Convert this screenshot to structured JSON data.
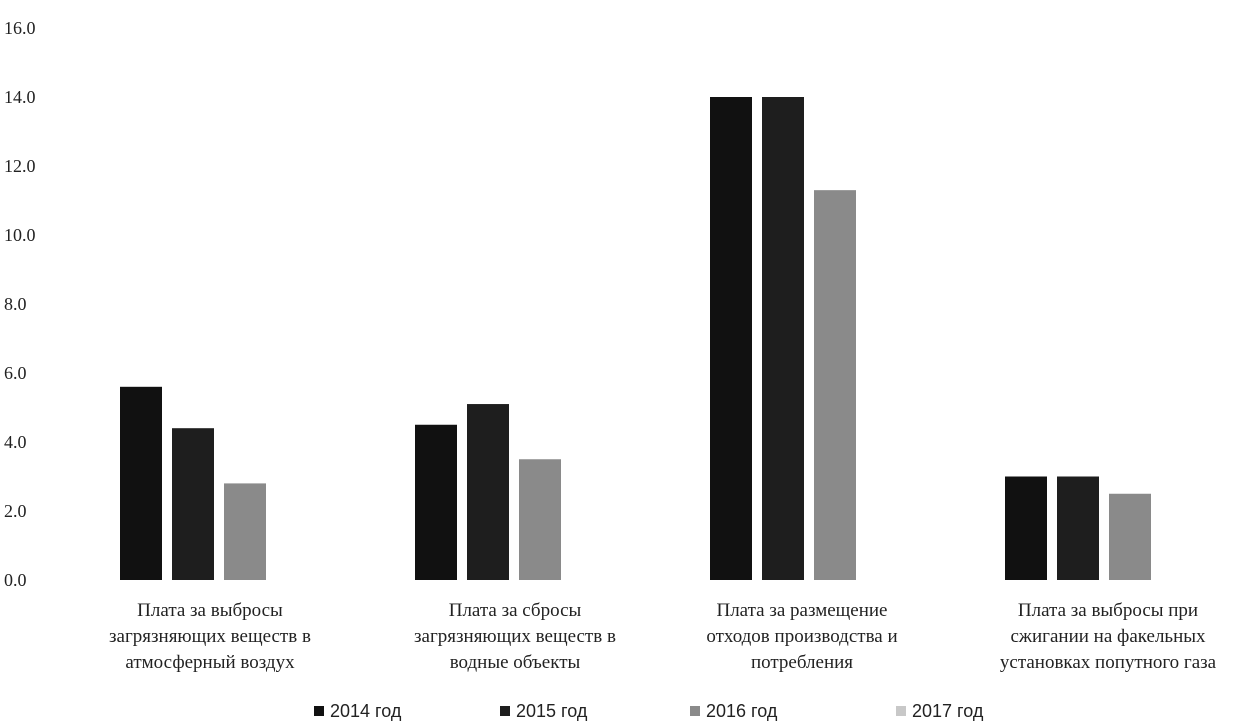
{
  "chart_data": {
    "type": "bar",
    "title": "",
    "xlabel": "",
    "ylabel": "",
    "ylim": [
      0,
      16
    ],
    "yticks": [
      "0.0",
      "2.0",
      "4.0",
      "6.0",
      "8.0",
      "10.0",
      "12.0",
      "14.0",
      "16.0"
    ],
    "grid": false,
    "legend_position": "bottom",
    "categories": [
      "Плата за выбросы загрязняющих веществ в атмосферный воздух",
      "Плата за сбросы загрязняющих веществ в водные объекты",
      "Плата за размещение отходов производства и потребления",
      "Плата за выбросы при сжигании на факельных установках попутного газа"
    ],
    "category_label_lines": [
      [
        "Плата за выбросы",
        "загрязняющих веществ в",
        "атмосферный воздух"
      ],
      [
        "Плата за сбросы",
        "загрязняющих веществ в",
        "водные объекты"
      ],
      [
        "Плата за размещение",
        "отходов производства и",
        "потребления"
      ],
      [
        "Плата за выбросы при",
        "сжигании на факельных",
        "установках попутного газа"
      ]
    ],
    "series": [
      {
        "name": "2014 год",
        "color": "#111111",
        "values": [
          5.6,
          4.5,
          14.0,
          3.0
        ]
      },
      {
        "name": "2015 год",
        "color": "#1e1e1e",
        "values": [
          4.4,
          5.1,
          14.0,
          3.0
        ]
      },
      {
        "name": "2016 год",
        "color": "#8a8a8a",
        "values": [
          2.8,
          3.5,
          11.3,
          2.5
        ]
      },
      {
        "name": "2017 год",
        "color": "#c8c8c8",
        "values": [
          0.0,
          0.0,
          0.0,
          0.0
        ]
      }
    ]
  }
}
